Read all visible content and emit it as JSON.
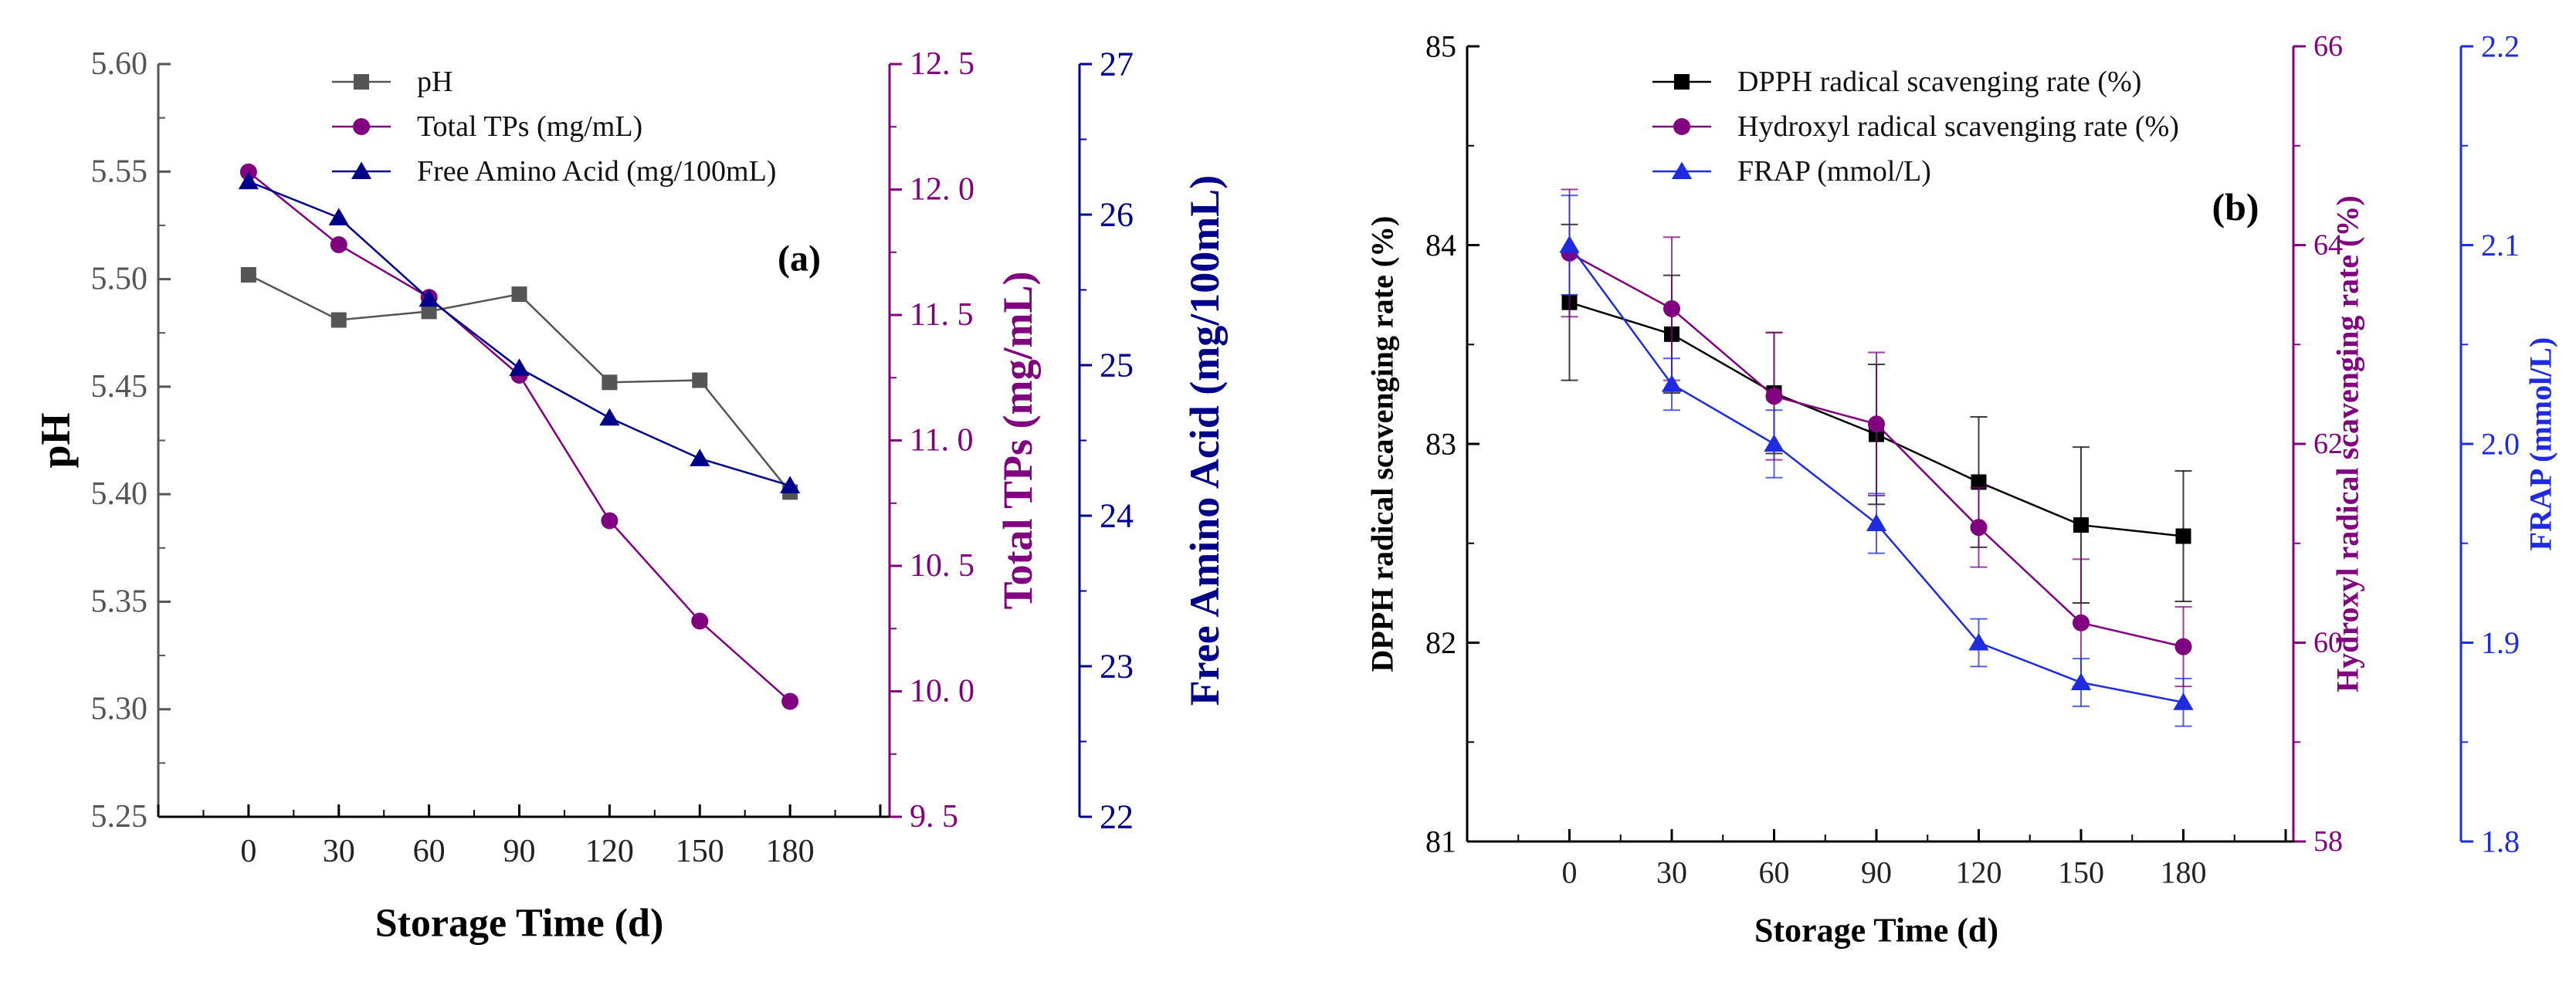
{
  "colors": {
    "black": "#000000",
    "ph": "#555555",
    "purple": "#800080",
    "navy": "#00008B",
    "blue": "#1E2BE0"
  },
  "chart_data": [
    {
      "type": "line",
      "panel_label": "(a)",
      "xlabel": "Storage Time (d)",
      "x": [
        0,
        30,
        60,
        90,
        120,
        150,
        180
      ],
      "xticks": [
        "0",
        "30",
        "60",
        "90",
        "120",
        "150",
        "180"
      ],
      "xlim": [
        -30,
        210
      ],
      "grid": false,
      "legend": "top-left",
      "axes": [
        {
          "side": "left",
          "label": "pH",
          "ylim": [
            5.25,
            5.6
          ],
          "ticks": [
            "5.25",
            "5.30",
            "5.35",
            "5.40",
            "5.45",
            "5.50",
            "5.55",
            "5.60"
          ]
        },
        {
          "side": "right-1",
          "label": "Total TPs (mg/mL)",
          "ylim": [
            9.5,
            12.5
          ],
          "ticks": [
            "9. 5",
            "10. 0",
            "10. 5",
            "11. 0",
            "11. 5",
            "12. 0",
            "12. 5"
          ]
        },
        {
          "side": "right-2",
          "label": "Free Amino Acid (mg/100mL)",
          "ylim": [
            22,
            27
          ],
          "ticks": [
            "22",
            "23",
            "24",
            "25",
            "26",
            "27"
          ]
        }
      ],
      "series": [
        {
          "name": "pH",
          "axis": 0,
          "marker": "square",
          "color": "#555555",
          "values": [
            5.502,
            5.481,
            5.485,
            5.493,
            5.452,
            5.453,
            5.401
          ]
        },
        {
          "name": "Total TPs (mg/mL)",
          "axis": 1,
          "marker": "circle",
          "color": "#800080",
          "values": [
            12.07,
            11.78,
            11.57,
            11.26,
            10.68,
            10.28,
            9.96
          ]
        },
        {
          "name": "Free Amino Acid (mg/100mL)",
          "axis": 2,
          "marker": "triangle",
          "color": "#00008B",
          "values": [
            26.22,
            25.98,
            25.44,
            24.98,
            24.65,
            24.38,
            24.2
          ]
        }
      ]
    },
    {
      "type": "line",
      "panel_label": "(b)",
      "xlabel": "Storage Time (d)",
      "x": [
        0,
        30,
        60,
        90,
        120,
        150,
        180
      ],
      "xticks": [
        "0",
        "30",
        "60",
        "90",
        "120",
        "150",
        "180"
      ],
      "xlim": [
        -30,
        210
      ],
      "grid": false,
      "legend": "top-left",
      "axes": [
        {
          "side": "left",
          "label": "DPPH radical scavenging rate (%)",
          "ylim": [
            80.5,
            85.5
          ],
          "ticks": [
            "81",
            "82",
            "83",
            "84",
            "85"
          ]
        },
        {
          "side": "right-1",
          "label": "Hydroxyl radical scavenging rate (%)",
          "ylim": [
            57.5,
            67.5
          ],
          "ticks": [
            "58",
            "60",
            "62",
            "64",
            "66"
          ]
        },
        {
          "side": "right-2",
          "label": "FRAP (mmol/L)",
          "ylim": [
            1.8,
            2.2
          ],
          "ticks": [
            "1.8",
            "1.9",
            "2.0",
            "2.1",
            "2.2"
          ]
        }
      ],
      "series": [
        {
          "name": "DPPH radical scavenging rate (%)",
          "axis": 0,
          "marker": "square",
          "color": "#000000",
          "values": [
            83.89,
            83.69,
            83.32,
            83.06,
            82.76,
            82.49,
            82.42
          ],
          "errors": [
            0.49,
            0.37,
            0.38,
            0.44,
            0.41,
            0.49,
            0.41
          ]
        },
        {
          "name": "Hydroxyl radical scavenging rate (%)",
          "axis": 1,
          "marker": "circle",
          "color": "#800080",
          "values": [
            64.9,
            64.2,
            63.1,
            62.75,
            61.45,
            60.25,
            59.95
          ],
          "errors": [
            0.8,
            0.9,
            0.8,
            0.9,
            0.5,
            0.8,
            0.5
          ]
        },
        {
          "name": "FRAP (mmol/L)",
          "axis": 2,
          "marker": "triangle",
          "color": "#1E2BE0",
          "values": [
            2.1,
            2.03,
            2.0,
            1.96,
            1.9,
            1.88,
            1.87
          ],
          "errors": [
            0.025,
            0.013,
            0.017,
            0.015,
            0.012,
            0.012,
            0.012
          ]
        }
      ]
    }
  ]
}
